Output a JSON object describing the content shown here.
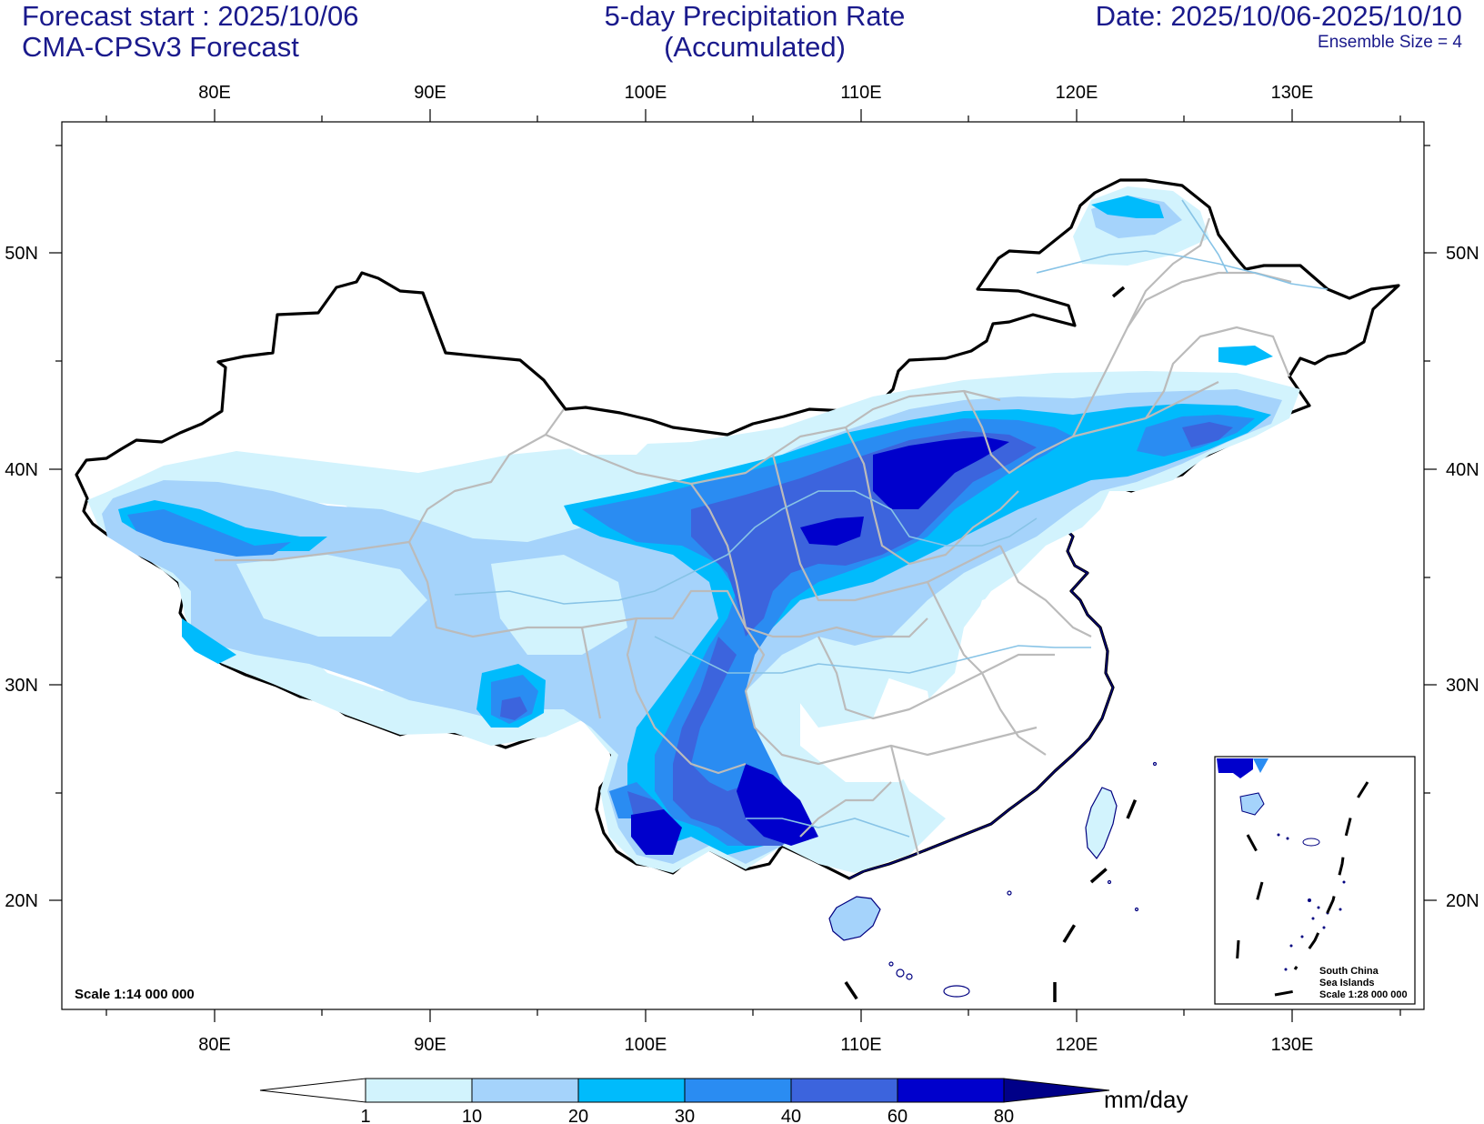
{
  "header": {
    "forecast_start": "Forecast start : 2025/10/06",
    "model": "CMA-CPSv3 Forecast",
    "title_line1": "5-day Precipitation Rate",
    "title_line2": "(Accumulated)",
    "date_range": "Date: 2025/10/06-2025/10/10",
    "ensemble": "Ensemble Size = 4"
  },
  "map": {
    "lon_ticks": [
      "80E",
      "90E",
      "100E",
      "110E",
      "120E",
      "130E"
    ],
    "lat_ticks": [
      "50N",
      "40N",
      "30N",
      "20N"
    ],
    "scale_label": "Scale 1:14 000 000",
    "inset": {
      "line1": "South China",
      "line2": "Sea Islands",
      "line3": "Scale 1:28 000 000"
    }
  },
  "legend": {
    "unit": "mm/day",
    "levels": [
      "1",
      "10",
      "20",
      "30",
      "40",
      "60",
      "80"
    ],
    "colors": [
      "#ffffff",
      "#d2f3fd",
      "#a5d3fb",
      "#00bbfc",
      "#2a8cf2",
      "#3c64dd",
      "#0000cc",
      "#000088"
    ]
  },
  "colors": {
    "text": "#1a1a8c",
    "border": "#000000",
    "province": "#bbbbbb",
    "river": "#87c3e6",
    "coast": "#000080"
  }
}
